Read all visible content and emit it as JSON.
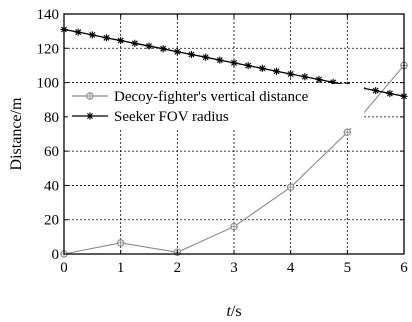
{
  "chart_data": {
    "type": "line",
    "xlabel_var": "t",
    "xlabel_unit": "/s",
    "ylabel": "Distance/m",
    "xlim": [
      0,
      6
    ],
    "ylim": [
      0,
      140
    ],
    "xticks": [
      "0",
      "1",
      "2",
      "3",
      "4",
      "5",
      "6"
    ],
    "yticks": [
      "0",
      "20",
      "40",
      "60",
      "80",
      "100",
      "120",
      "140"
    ],
    "grid": true,
    "legend_position": "top-right",
    "series": [
      {
        "name": "Decoy-fighter's vertical distance",
        "color": "#8a8a8a",
        "marker": "circle-cross",
        "x": [
          0,
          1,
          2,
          3,
          4,
          5,
          6
        ],
        "y": [
          0,
          6.5,
          1,
          16,
          39,
          71,
          110
        ]
      },
      {
        "name": "Seeker FOV radius",
        "color": "#000000",
        "marker": "star",
        "x": [
          0,
          0.25,
          0.5,
          0.75,
          1,
          1.25,
          1.5,
          1.75,
          2,
          2.25,
          2.5,
          2.75,
          3,
          3.25,
          3.5,
          3.75,
          4,
          4.25,
          4.5,
          4.75,
          5,
          5.25,
          5.5,
          5.75,
          6
        ],
        "y": [
          131,
          129.4,
          127.8,
          126.1,
          124.5,
          122.9,
          121.3,
          119.7,
          118,
          116.4,
          114.8,
          113.1,
          111.5,
          109.9,
          108.3,
          106.6,
          105,
          103.4,
          101.8,
          100.1,
          98.5,
          96.9,
          95.3,
          93.6,
          92
        ]
      }
    ]
  }
}
